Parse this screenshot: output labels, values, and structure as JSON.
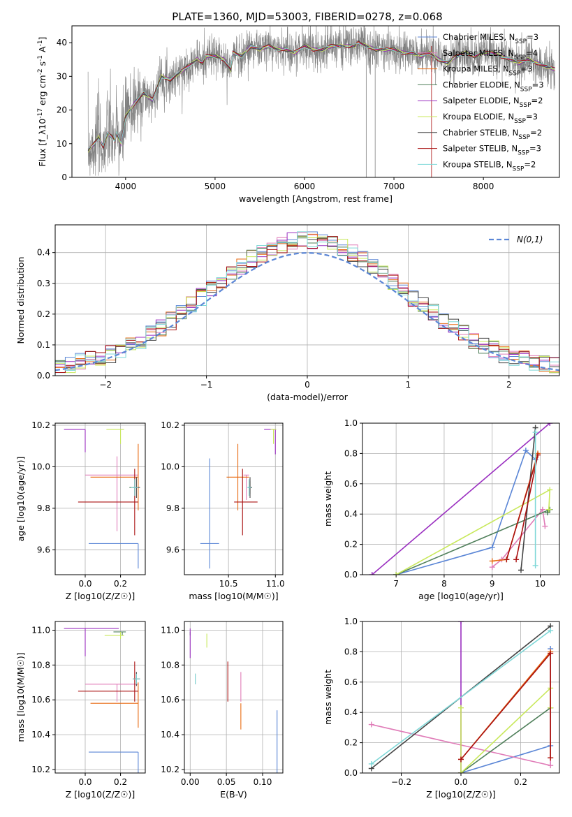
{
  "title": "PLATE=1360, MJD=53003, FIBERID=0278, z=0.068",
  "colors": {
    "chabrier_miles": "#5b86d6",
    "salpeter_miles": "#e07cb8",
    "kroupa_miles": "#e86a10",
    "chabrier_elodie": "#4f7f5a",
    "salpeter_elodie": "#9a2fc0",
    "kroupa_elodie": "#c8e85a",
    "chabrier_stelib": "#444444",
    "salpeter_stelib": "#aa1111",
    "kroupa_stelib": "#7fd8d8",
    "data": "#808080",
    "gauss": "#5b86d6",
    "grid": "#b0b0b0"
  },
  "chart_data": [
    {
      "id": "spectrum",
      "type": "line",
      "xlabel": "wavelength [Angstrom, rest frame]",
      "ylabel": "Flux [f_λ10^-17 erg cm^-2 s^-1 A^-1]",
      "xlim": [
        3400,
        8850
      ],
      "ylim": [
        0,
        45
      ],
      "xticks": [
        4000,
        5000,
        6000,
        7000,
        8000
      ],
      "yticks": [
        0,
        10,
        20,
        30,
        40
      ],
      "grid": false,
      "legend_position": "top-right",
      "legend": [
        {
          "label": "Chabrier MILES, N_SSP=3",
          "color_key": "chabrier_miles"
        },
        {
          "label": "Salpeter MILES, N_SSP=4",
          "color_key": "salpeter_miles"
        },
        {
          "label": "Kroupa MILES, N_SSP=3",
          "color_key": "kroupa_miles"
        },
        {
          "label": "Chabrier ELODIE, N_SSP=3",
          "color_key": "chabrier_elodie"
        },
        {
          "label": "Salpeter ELODIE, N_SSP=2",
          "color_key": "salpeter_elodie"
        },
        {
          "label": "Kroupa ELODIE, N_SSP=3",
          "color_key": "kroupa_elodie"
        },
        {
          "label": "Chabrier STELIB, N_SSP=2",
          "color_key": "chabrier_stelib"
        },
        {
          "label": "Salpeter STELIB, N_SSP=3",
          "color_key": "salpeter_stelib"
        },
        {
          "label": "Kroupa STELIB, N_SSP=2",
          "color_key": "kroupa_stelib"
        }
      ],
      "model_wavelength": [
        3580,
        3650,
        3700,
        3750,
        3800,
        3850,
        3880,
        3900,
        3950,
        4000,
        4100,
        4200,
        4300,
        4400,
        4500,
        4600,
        4700,
        4800,
        4861,
        4900,
        5000,
        5100,
        5176,
        5200,
        5300,
        5400,
        5500,
        5600,
        5700,
        5800,
        5890,
        6000,
        6100,
        6200,
        6300,
        6400,
        6500,
        6563,
        6600,
        6700,
        6800,
        6900,
        7000,
        7100,
        7200,
        7300,
        7400,
        7500,
        7600,
        7700,
        7800,
        7900,
        8000,
        8100,
        8200,
        8300,
        8400,
        8500,
        8600,
        8700,
        8800
      ],
      "model_flux": [
        8,
        10,
        12,
        9,
        13,
        12,
        11,
        13,
        10,
        18,
        22,
        25,
        23,
        30,
        29,
        31,
        33,
        35,
        34,
        36,
        36,
        35,
        32,
        37,
        36,
        39,
        38,
        39,
        38,
        38,
        37,
        39,
        38,
        38,
        39,
        39,
        39,
        39,
        40,
        39,
        38,
        38,
        38,
        37,
        37,
        36,
        37,
        35,
        34,
        36,
        37,
        36,
        37,
        37,
        36,
        35,
        34,
        35,
        34,
        33,
        32
      ]
    },
    {
      "id": "residuals",
      "type": "histogram",
      "xlabel": "(data-model)/error",
      "ylabel": "Normed distribution",
      "xlim": [
        -2.5,
        2.5
      ],
      "ylim": [
        0,
        0.49
      ],
      "xticks": [
        -2,
        -1,
        0,
        1,
        2
      ],
      "yticks": [
        0.0,
        0.1,
        0.2,
        0.3,
        0.4
      ],
      "grid": true,
      "legend_position": "top-right",
      "legend": [
        {
          "label": "N(0,1)",
          "color_key": "gauss"
        }
      ],
      "bin_width": 0.1
    },
    {
      "id": "age_vs_z",
      "type": "errorbar",
      "xlabel": "Z [log10(Z/Z☉)]",
      "ylabel": "age [log10(age/yr)]",
      "xlim": [
        -0.17,
        0.34
      ],
      "ylim": [
        9.48,
        10.21
      ],
      "xticks": [
        0.0,
        0.2
      ],
      "yticks": [
        9.6,
        9.8,
        10.0,
        10.2
      ],
      "grid": true,
      "points": [
        {
          "color_key": "chabrier_miles",
          "x": 0.3,
          "xerr": [
            0.28,
            0.0
          ],
          "y": 9.63,
          "yerr": [
            0.12,
            0.0
          ]
        },
        {
          "color_key": "salpeter_miles",
          "x": 0.18,
          "xerr": [
            0.18,
            0.12
          ],
          "y": 9.96,
          "yerr": [
            0.27,
            0.09
          ]
        },
        {
          "color_key": "kroupa_miles",
          "x": 0.3,
          "xerr": [
            0.27,
            0.0
          ],
          "y": 9.95,
          "yerr": [
            0.16,
            0.16
          ]
        },
        {
          "color_key": "chabrier_elodie",
          "x": 0.28,
          "xerr": [
            0.03,
            0.02
          ],
          "y": 9.9,
          "yerr": [
            0.04,
            0.04
          ]
        },
        {
          "color_key": "salpeter_elodie",
          "x": -0.0,
          "xerr": [
            0.12,
            0.0
          ],
          "y": 10.18,
          "yerr": [
            0.11,
            0.0
          ]
        },
        {
          "color_key": "kroupa_elodie",
          "x": 0.2,
          "xerr": [
            0.08,
            0.02
          ],
          "y": 10.18,
          "yerr": [
            0.07,
            0.0
          ]
        },
        {
          "color_key": "chabrier_stelib",
          "x": 0.29,
          "xerr": [
            0.02,
            0.02
          ],
          "y": 9.9,
          "yerr": [
            0.05,
            0.05
          ]
        },
        {
          "color_key": "salpeter_stelib",
          "x": 0.28,
          "xerr": [
            0.32,
            0.02
          ],
          "y": 9.83,
          "yerr": [
            0.16,
            0.16
          ]
        },
        {
          "color_key": "kroupa_stelib",
          "x": 0.28,
          "xerr": [
            0.02,
            0.02
          ],
          "y": 9.9,
          "yerr": [
            0.04,
            0.04
          ]
        }
      ]
    },
    {
      "id": "age_vs_mass",
      "type": "errorbar",
      "xlabel": "mass [log10(M/M☉)]",
      "ylabel": "",
      "xlim": [
        10.03,
        11.08
      ],
      "ylim": [
        9.48,
        10.21
      ],
      "xticks": [
        10.5,
        11.0
      ],
      "yticks": [
        9.6,
        9.8,
        10.0,
        10.2
      ],
      "grid": true,
      "points": [
        {
          "color_key": "chabrier_miles",
          "x": 10.3,
          "xerr": [
            0.1,
            0.1
          ],
          "y": 9.63,
          "yerr": [
            0.12,
            0.41
          ]
        },
        {
          "color_key": "salpeter_miles",
          "x": 10.69,
          "xerr": [
            0.03,
            0.03
          ],
          "y": 9.96,
          "yerr": [
            0.12,
            0.0
          ]
        },
        {
          "color_key": "kroupa_miles",
          "x": 10.6,
          "xerr": [
            0.12,
            0.12
          ],
          "y": 9.95,
          "yerr": [
            0.16,
            0.16
          ]
        },
        {
          "color_key": "chabrier_elodie",
          "x": 10.73,
          "xerr": [
            0.02,
            0.02
          ],
          "y": 9.9,
          "yerr": [
            0.03,
            0.03
          ]
        },
        {
          "color_key": "salpeter_elodie",
          "x": 11.0,
          "xerr": [
            0.12,
            0.0
          ],
          "y": 10.18,
          "yerr": [
            0.12,
            0.0
          ]
        },
        {
          "color_key": "kroupa_elodie",
          "x": 10.98,
          "xerr": [
            0.03,
            0.03
          ],
          "y": 10.18,
          "yerr": [
            0.07,
            0.0
          ]
        },
        {
          "color_key": "chabrier_stelib",
          "x": 10.73,
          "xerr": [
            0.02,
            0.02
          ],
          "y": 9.9,
          "yerr": [
            0.05,
            0.05
          ]
        },
        {
          "color_key": "salpeter_stelib",
          "x": 10.65,
          "xerr": [
            0.09,
            0.16
          ],
          "y": 9.83,
          "yerr": [
            0.16,
            0.16
          ]
        },
        {
          "color_key": "kroupa_stelib",
          "x": 10.72,
          "xerr": [
            0.02,
            0.02
          ],
          "y": 9.9,
          "yerr": [
            0.04,
            0.04
          ]
        }
      ]
    },
    {
      "id": "weight_vs_age",
      "type": "line",
      "xlabel": "age [log10(age/yr)]",
      "ylabel": "mass weight",
      "xlim": [
        6.3,
        10.4
      ],
      "ylim": [
        0.0,
        1.0
      ],
      "xticks": [
        7,
        8,
        9,
        10
      ],
      "yticks": [
        0.0,
        0.2,
        0.4,
        0.6,
        0.8,
        1.0
      ],
      "grid": true,
      "series": [
        {
          "color_key": "chabrier_miles",
          "x": [
            7.0,
            9.0,
            9.7,
            9.9
          ],
          "y": [
            0.0,
            0.18,
            0.82,
            0.76
          ]
        },
        {
          "color_key": "salpeter_miles",
          "x": [
            9.0,
            9.2,
            10.05,
            10.1
          ],
          "y": [
            0.05,
            0.1,
            0.43,
            0.32
          ]
        },
        {
          "color_key": "kroupa_miles",
          "x": [
            9.0,
            9.3,
            9.95
          ],
          "y": [
            0.09,
            0.1,
            0.8
          ]
        },
        {
          "color_key": "chabrier_elodie",
          "x": [
            7.0,
            10.2,
            10.15
          ],
          "y": [
            0.0,
            0.43,
            0.41
          ]
        },
        {
          "color_key": "salpeter_elodie",
          "x": [
            6.5,
            10.2
          ],
          "y": [
            0.0,
            1.0
          ]
        },
        {
          "color_key": "kroupa_elodie",
          "x": [
            7.0,
            10.2,
            10.18
          ],
          "y": [
            0.0,
            0.56,
            0.43
          ]
        },
        {
          "color_key": "chabrier_stelib",
          "x": [
            9.6,
            9.9
          ],
          "y": [
            0.03,
            0.97
          ]
        },
        {
          "color_key": "salpeter_stelib",
          "x": [
            9.3,
            9.95,
            9.5
          ],
          "y": [
            0.1,
            0.79,
            0.1
          ]
        },
        {
          "color_key": "kroupa_stelib",
          "x": [
            9.9,
            9.9
          ],
          "y": [
            0.06,
            0.94
          ]
        }
      ]
    },
    {
      "id": "mass_vs_z",
      "type": "errorbar",
      "xlabel": "Z [log10(Z/Z☉)]",
      "ylabel": "mass [log10(M/M☉)]",
      "xlim": [
        -0.17,
        0.34
      ],
      "ylim": [
        10.18,
        11.05
      ],
      "xticks": [
        0.0,
        0.2
      ],
      "yticks": [
        10.2,
        10.4,
        10.6,
        10.8,
        11.0
      ],
      "grid": true,
      "points": [
        {
          "color_key": "chabrier_miles",
          "x": 0.3,
          "xerr": [
            0.28,
            0.0
          ],
          "y": 10.3,
          "yerr": [
            0.12,
            0.0
          ]
        },
        {
          "color_key": "salpeter_miles",
          "x": 0.18,
          "xerr": [
            0.18,
            0.12
          ],
          "y": 10.69,
          "yerr": [
            0.1,
            0.0
          ]
        },
        {
          "color_key": "kroupa_miles",
          "x": 0.3,
          "xerr": [
            0.27,
            0.0
          ],
          "y": 10.58,
          "yerr": [
            0.14,
            0.12
          ]
        },
        {
          "color_key": "chabrier_elodie",
          "x": 0.21,
          "xerr": [
            0.05,
            0.02
          ],
          "y": 10.99,
          "yerr": [
            0.02,
            0.0
          ]
        },
        {
          "color_key": "salpeter_elodie",
          "x": -0.0,
          "xerr": [
            0.12,
            0.19
          ],
          "y": 11.01,
          "yerr": [
            0.16,
            0.0
          ]
        },
        {
          "color_key": "kroupa_elodie",
          "x": 0.2,
          "xerr": [
            0.09,
            0.02
          ],
          "y": 10.97,
          "yerr": [
            0.02,
            0.02
          ]
        },
        {
          "color_key": "chabrier_stelib",
          "x": 0.29,
          "xerr": [
            0.02,
            0.02
          ],
          "y": 10.72,
          "yerr": [
            0.04,
            0.04
          ]
        },
        {
          "color_key": "salpeter_stelib",
          "x": 0.28,
          "xerr": [
            0.32,
            0.02
          ],
          "y": 10.65,
          "yerr": [
            0.06,
            0.17
          ]
        },
        {
          "color_key": "kroupa_stelib",
          "x": 0.29,
          "xerr": [
            0.02,
            0.02
          ],
          "y": 10.72,
          "yerr": [
            0.03,
            0.03
          ]
        }
      ]
    },
    {
      "id": "mass_vs_ebv",
      "type": "errorbar",
      "xlabel": "E(B-V)",
      "ylabel": "",
      "xlim": [
        -0.008,
        0.128
      ],
      "ylim": [
        10.18,
        11.05
      ],
      "xticks": [
        0.0,
        0.05,
        0.1
      ],
      "yticks": [
        10.2,
        10.4,
        10.6,
        10.8,
        11.0
      ],
      "grid": true,
      "points": [
        {
          "color_key": "chabrier_miles",
          "x": 0.12,
          "xerr": [
            0.0,
            0.0
          ],
          "y": 10.3,
          "yerr": [
            0.12,
            0.24
          ]
        },
        {
          "color_key": "salpeter_miles",
          "x": 0.07,
          "xerr": [
            0.0,
            0.0
          ],
          "y": 10.69,
          "yerr": [
            0.1,
            0.07
          ]
        },
        {
          "color_key": "kroupa_miles",
          "x": 0.07,
          "xerr": [
            0.0,
            0.0
          ],
          "y": 10.58,
          "yerr": [
            0.15,
            0.0
          ]
        },
        {
          "color_key": "chabrier_elodie",
          "x": 0.0,
          "xerr": [
            0.0,
            0.0
          ],
          "y": 10.99,
          "yerr": [
            0.02,
            0.0
          ]
        },
        {
          "color_key": "salpeter_elodie",
          "x": 0.0,
          "xerr": [
            0.0,
            0.0
          ],
          "y": 10.94,
          "yerr": [
            0.1,
            0.07
          ]
        },
        {
          "color_key": "kroupa_elodie",
          "x": 0.023,
          "xerr": [
            0.0,
            0.0
          ],
          "y": 10.94,
          "yerr": [
            0.04,
            0.04
          ]
        },
        {
          "color_key": "chabrier_stelib",
          "x": 0.007,
          "xerr": [
            0.0,
            0.0
          ],
          "y": 10.72,
          "yerr": [
            0.03,
            0.03
          ]
        },
        {
          "color_key": "salpeter_stelib",
          "x": 0.052,
          "xerr": [
            0.0,
            0.0
          ],
          "y": 10.72,
          "yerr": [
            0.13,
            0.1
          ]
        },
        {
          "color_key": "kroupa_stelib",
          "x": 0.007,
          "xerr": [
            0.0,
            0.0
          ],
          "y": 10.72,
          "yerr": [
            0.03,
            0.03
          ]
        }
      ]
    },
    {
      "id": "weight_vs_z",
      "type": "line",
      "xlabel": "Z [log10(Z/Z☉)]",
      "ylabel": "mass weight",
      "xlim": [
        -0.33,
        0.33
      ],
      "ylim": [
        0.0,
        1.0
      ],
      "xticks": [
        -0.2,
        0.0,
        0.2
      ],
      "yticks": [
        0.0,
        0.2,
        0.4,
        0.6,
        0.8,
        1.0
      ],
      "grid": true,
      "series": [
        {
          "color_key": "chabrier_miles",
          "x": [
            0.0,
            0.3,
            0.3
          ],
          "y": [
            0.0,
            0.18,
            0.82
          ]
        },
        {
          "color_key": "salpeter_miles",
          "x": [
            -0.3,
            0.3,
            0.3
          ],
          "y": [
            0.32,
            0.05,
            0.43
          ]
        },
        {
          "color_key": "kroupa_miles",
          "x": [
            0.0,
            0.3,
            0.3
          ],
          "y": [
            0.09,
            0.8,
            0.1
          ]
        },
        {
          "color_key": "chabrier_elodie",
          "x": [
            0.0,
            0.3
          ],
          "y": [
            0.0,
            0.43
          ]
        },
        {
          "color_key": "salpeter_elodie",
          "x": [
            0.0,
            0.0
          ],
          "y": [
            0.0,
            1.0
          ]
        },
        {
          "color_key": "kroupa_elodie",
          "x": [
            0.0,
            0.0,
            0.3,
            0.3
          ],
          "y": [
            0.43,
            0.0,
            0.56,
            0.43
          ]
        },
        {
          "color_key": "chabrier_stelib",
          "x": [
            -0.3,
            0.3
          ],
          "y": [
            0.03,
            0.97
          ]
        },
        {
          "color_key": "salpeter_stelib",
          "x": [
            0.0,
            0.3,
            0.3
          ],
          "y": [
            0.09,
            0.79,
            0.1
          ]
        },
        {
          "color_key": "kroupa_stelib",
          "x": [
            -0.3,
            0.3
          ],
          "y": [
            0.06,
            0.94
          ]
        }
      ]
    }
  ]
}
